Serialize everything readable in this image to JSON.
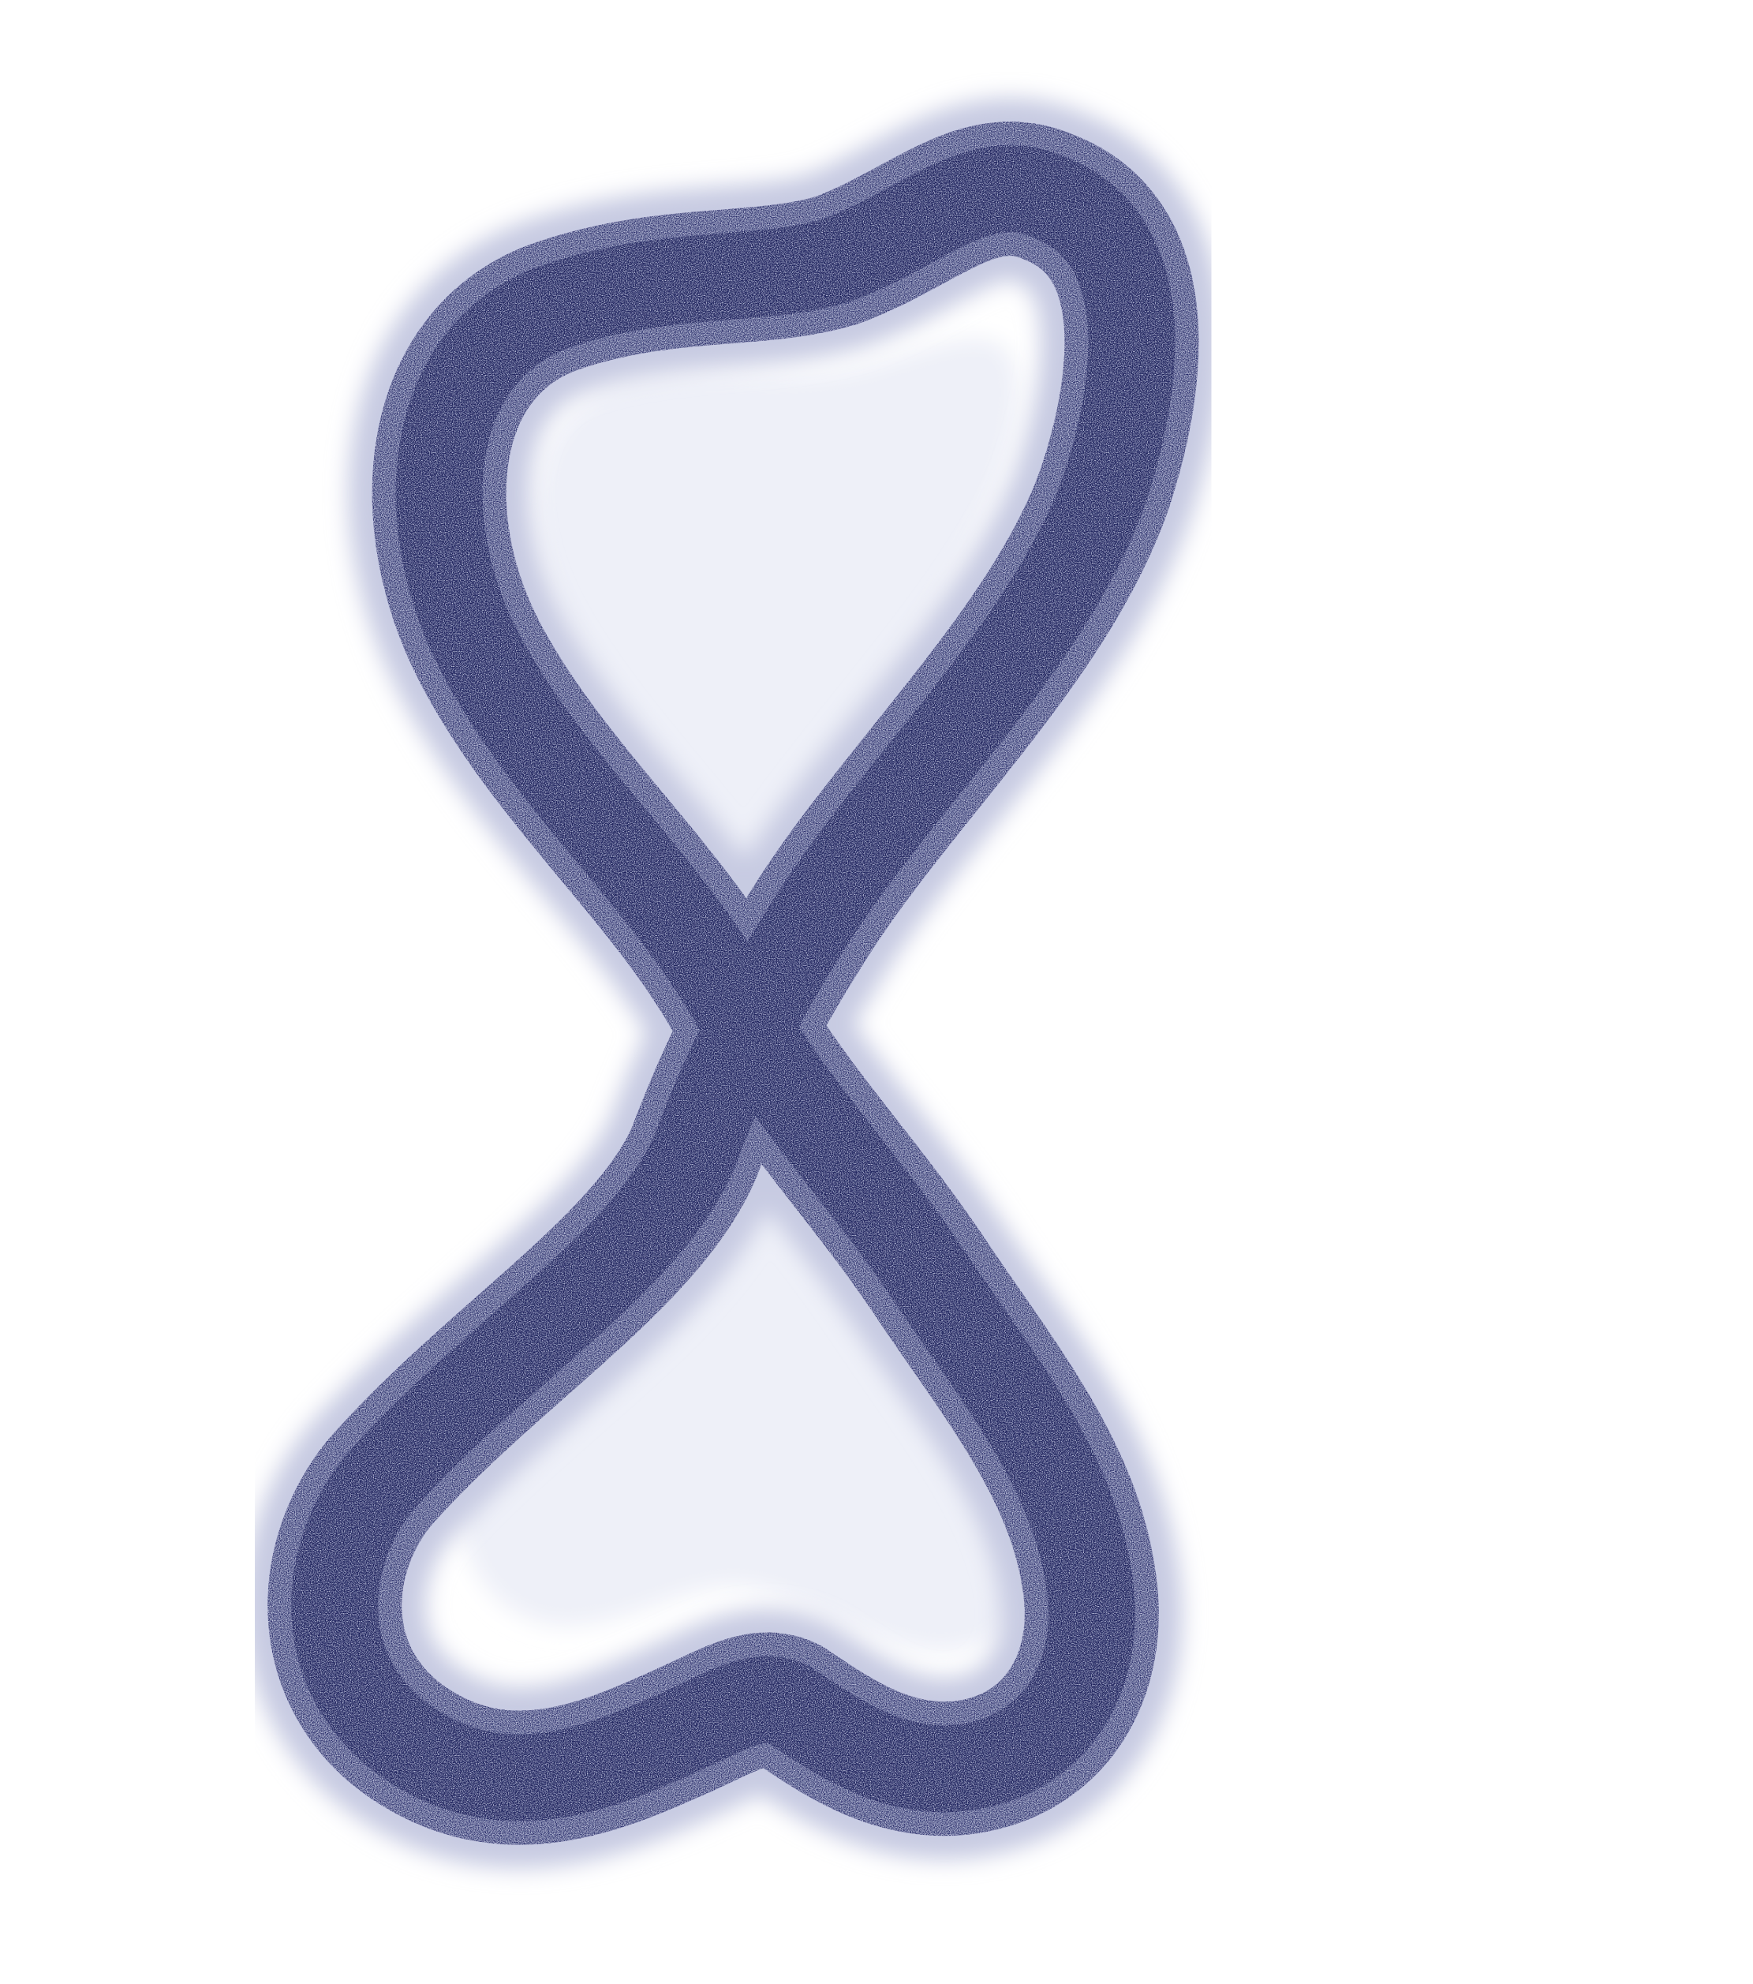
{
  "figure": {
    "shape": "figure-eight",
    "render_style": "stippled dot density",
    "colors": {
      "ink": "#1a1f5e",
      "inner_fill": "#eef0f8",
      "background": "#ffffff"
    }
  }
}
